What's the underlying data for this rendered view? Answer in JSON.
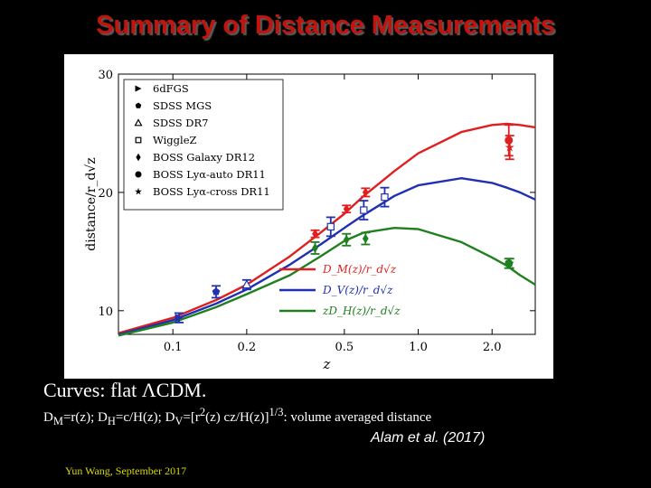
{
  "slide": {
    "title": "Summary of Distance Measurements",
    "caption_curves": "Curves: flat ΛCDM.",
    "definitions": {
      "dm_sym": "D",
      "dm_sub": "M",
      "dm_eq": "=r(z); ",
      "dh_sym": "D",
      "dh_sub": "H",
      "dh_eq": "=c/H(z); ",
      "dv_sym": "D",
      "dv_sub": "V",
      "dv_eq1": "=[r",
      "dv_sup1": "2",
      "dv_eq2": "(z) cz/H(z)]",
      "dv_sup2": "1/3",
      "dv_eq3": ": volume averaged distance"
    },
    "citation": "Alam et  al. (2017)",
    "footer": "Yun Wang, September 2017"
  },
  "chart_data": {
    "type": "scatter",
    "x_scale": "log",
    "xlim": [
      0.06,
      3.0
    ],
    "ylim": [
      8,
      30
    ],
    "xlabel": "z",
    "ylabel": "distance/r_d√z",
    "x_ticks": [
      0.1,
      0.2,
      0.5,
      1.0,
      2.0
    ],
    "x_tick_labels": [
      "0.1",
      "0.2",
      "0.5",
      "1.0",
      "2.0"
    ],
    "y_ticks": [
      10,
      20,
      30
    ],
    "y_tick_labels": [
      "10",
      "20",
      "30"
    ],
    "grid": false,
    "legend_markers_position": "top-left",
    "legend_curves_position": "lower-right",
    "colors": {
      "DM": "#e02020",
      "DV": "#2030b0",
      "DH": "#208020"
    },
    "legend_markers": [
      {
        "label": "6dFGS",
        "marker": "triangle-right"
      },
      {
        "label": "SDSS MGS",
        "marker": "pentagon"
      },
      {
        "label": "SDSS DR7",
        "marker": "triangle-up-open"
      },
      {
        "label": "WiggleZ",
        "marker": "square-open"
      },
      {
        "label": "BOSS Galaxy DR12",
        "marker": "diamond"
      },
      {
        "label": "BOSS Lyα-auto DR11",
        "marker": "circle"
      },
      {
        "label": "BOSS Lyα-cross DR11",
        "marker": "star"
      }
    ],
    "curves": [
      {
        "name": "DM",
        "label": "D_M(z)/r_d√z",
        "color": "#e02020",
        "x": [
          0.06,
          0.1,
          0.15,
          0.2,
          0.3,
          0.4,
          0.5,
          0.6,
          0.8,
          1.0,
          1.5,
          2.0,
          2.3,
          2.6,
          3.0
        ],
        "y": [
          8.1,
          9.4,
          10.9,
          12.2,
          14.6,
          16.6,
          18.2,
          19.7,
          21.8,
          23.3,
          25.1,
          25.7,
          25.8,
          25.7,
          25.5
        ]
      },
      {
        "name": "DV",
        "label": "D_V(z)/r_d√z",
        "color": "#2030b0",
        "x": [
          0.06,
          0.1,
          0.15,
          0.2,
          0.3,
          0.4,
          0.5,
          0.6,
          0.8,
          1.0,
          1.5,
          2.0,
          2.3,
          2.6,
          3.0
        ],
        "y": [
          8.0,
          9.2,
          10.6,
          11.8,
          13.9,
          15.6,
          17.0,
          18.1,
          19.7,
          20.6,
          21.2,
          20.8,
          20.4,
          20.0,
          19.4
        ]
      },
      {
        "name": "DH",
        "label": "zD_H(z)/r_d√z",
        "color": "#208020",
        "x": [
          0.06,
          0.1,
          0.15,
          0.2,
          0.3,
          0.4,
          0.5,
          0.6,
          0.8,
          1.0,
          1.5,
          2.0,
          2.3,
          2.6,
          3.0
        ],
        "y": [
          7.9,
          9.0,
          10.3,
          11.4,
          13.0,
          14.6,
          15.9,
          16.6,
          17.0,
          16.9,
          15.8,
          14.5,
          13.8,
          13.0,
          12.2
        ]
      }
    ],
    "points": [
      {
        "survey": "6dFGS",
        "quantity": "DV",
        "x": 0.106,
        "y": 9.4,
        "err": 0.4,
        "marker": "triangle-right"
      },
      {
        "survey": "SDSS MGS",
        "quantity": "DV",
        "x": 0.15,
        "y": 11.6,
        "err": 0.5,
        "marker": "pentagon"
      },
      {
        "survey": "SDSS DR7",
        "quantity": "DV",
        "x": 0.2,
        "y": 12.2,
        "err": 0.4,
        "marker": "triangle-up-open"
      },
      {
        "survey": "WiggleZ",
        "quantity": "DV",
        "x": 0.44,
        "y": 17.1,
        "err": 0.8,
        "marker": "square-open"
      },
      {
        "survey": "WiggleZ",
        "quantity": "DV",
        "x": 0.6,
        "y": 18.5,
        "err": 0.8,
        "marker": "square-open"
      },
      {
        "survey": "WiggleZ",
        "quantity": "DV",
        "x": 0.73,
        "y": 19.6,
        "err": 0.8,
        "marker": "square-open"
      },
      {
        "survey": "BOSS Galaxy DR12",
        "quantity": "DM",
        "x": 0.38,
        "y": 16.5,
        "err": 0.3,
        "marker": "diamond"
      },
      {
        "survey": "BOSS Galaxy DR12",
        "quantity": "DM",
        "x": 0.51,
        "y": 18.6,
        "err": 0.3,
        "marker": "diamond"
      },
      {
        "survey": "BOSS Galaxy DR12",
        "quantity": "DM",
        "x": 0.61,
        "y": 20.0,
        "err": 0.35,
        "marker": "diamond"
      },
      {
        "survey": "BOSS Galaxy DR12",
        "quantity": "DH",
        "x": 0.38,
        "y": 15.3,
        "err": 0.5,
        "marker": "diamond"
      },
      {
        "survey": "BOSS Galaxy DR12",
        "quantity": "DH",
        "x": 0.51,
        "y": 16.0,
        "err": 0.5,
        "marker": "diamond"
      },
      {
        "survey": "BOSS Galaxy DR12",
        "quantity": "DH",
        "x": 0.61,
        "y": 16.1,
        "err": 0.5,
        "marker": "diamond"
      },
      {
        "survey": "BOSS Lyα-auto DR11",
        "quantity": "DM",
        "x": 2.34,
        "y": 24.4,
        "err": 1.3,
        "marker": "circle"
      },
      {
        "survey": "BOSS Lyα-auto DR11",
        "quantity": "DH",
        "x": 2.34,
        "y": 14.0,
        "err": 0.4,
        "marker": "circle"
      },
      {
        "survey": "BOSS Lyα-cross DR11",
        "quantity": "DM",
        "x": 2.36,
        "y": 23.8,
        "err": 1.0,
        "marker": "star"
      },
      {
        "survey": "BOSS Lyα-cross DR11",
        "quantity": "DH",
        "x": 2.36,
        "y": 14.0,
        "err": 0.4,
        "marker": "star"
      }
    ]
  }
}
